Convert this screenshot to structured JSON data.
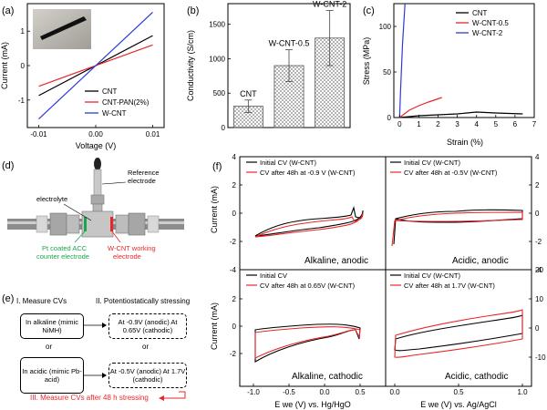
{
  "colors": {
    "black": "#000000",
    "red": "#e8262a",
    "blue": "#2b3bd6",
    "green": "#18a64a",
    "gray": "#a0a0a0"
  },
  "panel_a": {
    "letter": "(a)",
    "xlabel": "Voltage (V)",
    "ylabel": "Current (mA)",
    "xticks": [
      "-0.01",
      "0.00",
      "0.01"
    ],
    "yticks": [
      "-1",
      "0",
      "1"
    ],
    "legend": [
      "CNT",
      "CNT-PAN(2%)",
      "W-CNT"
    ]
  },
  "panel_b": {
    "letter": "(b)",
    "ylabel": "Conductivity (S/cm)",
    "yticks": [
      "0",
      "500",
      "1000",
      "1500"
    ],
    "bar_labels": [
      "CNT",
      "W-CNT-0.5",
      "W-CNT-2"
    ]
  },
  "panel_c": {
    "letter": "(c)",
    "xlabel": "Strain (%)",
    "ylabel": "Stress (MPa)",
    "xticks": [
      "0",
      "1",
      "2",
      "3",
      "4",
      "5",
      "6",
      "7"
    ],
    "yticks": [
      "0",
      "50",
      "100"
    ],
    "legend": [
      "CNT",
      "W-CNT-0.5",
      "W-CNT-2"
    ]
  },
  "panel_d": {
    "letter": "(d)",
    "reference": "Reference electrode",
    "electrolyte": "electrolyte",
    "counter": "Pt coated ACC counter electrode",
    "working": "W-CNT working electrode"
  },
  "panel_e": {
    "letter": "(e)",
    "step1": "I. Measure CVs",
    "step2": "II. Potentiostatically stressing",
    "alk": "In alkaline (mimic NiMH)",
    "acid": "In acidic (mimic Pb-acid)",
    "alk_stress": "At -0.9V (anodic) At 0.65V (cathodic)",
    "acid_stress": "At -0.5V (anodic) At 1.7V (cathodic)",
    "or": "or",
    "step3": "III. Measure CVs after 48 h stressing"
  },
  "panel_f": {
    "letter": "(f)",
    "ylabel": "Current (mA)",
    "xlabel_left": "E we (V) vs. Hg/HgO",
    "xlabel_right": "E we (V) vs. Ag/AgCl",
    "xticks_left": [
      "-1.0",
      "-0.5",
      "0.0",
      "0.5"
    ],
    "xticks_right": [
      "0.0",
      "0.5",
      "1.0"
    ],
    "yticks_top": [
      "4",
      "2",
      "0",
      "-2",
      "-4"
    ],
    "yticks_bottom_left": [
      "2",
      "0",
      "-2"
    ],
    "yticks_bottom_right": [
      "20",
      "10",
      "0",
      "-10"
    ],
    "sub": [
      {
        "title": "Alkaline, anodic",
        "legend": [
          "Initial CV (W-CNT)",
          "CV after 48h at -0.9 V (W-CNT)"
        ]
      },
      {
        "title": "Acidic, anodic",
        "legend": [
          "Initial CV (W-CNT)",
          "CV after 48h at -0.5V (W-CNT)"
        ]
      },
      {
        "title": "Alkaline, cathodic",
        "legend": [
          "Initial CV",
          "CV after 48h at 0.65V (W-CNT)"
        ]
      },
      {
        "title": "Acidic, cathodic",
        "legend": [
          "Initial CV (W-CNT)",
          "CV after 48h at 1.7V (W-CNT)"
        ]
      }
    ]
  },
  "chart_data": [
    {
      "type": "line",
      "title": "",
      "xlabel": "Voltage (V)",
      "ylabel": "Current (mA)",
      "xlim": [
        -0.012,
        0.012
      ],
      "ylim": [
        -1.8,
        1.8
      ],
      "series": [
        {
          "name": "CNT",
          "x": [
            -0.01,
            0.01
          ],
          "y": [
            -0.87,
            0.87
          ]
        },
        {
          "name": "CNT-PAN(2%)",
          "x": [
            -0.01,
            0.01
          ],
          "y": [
            -0.6,
            0.6
          ]
        },
        {
          "name": "W-CNT",
          "x": [
            -0.01,
            0.01
          ],
          "y": [
            -1.55,
            1.55
          ]
        }
      ]
    },
    {
      "type": "bar",
      "title": "",
      "ylabel": "Conductivity (S/cm)",
      "ylim": [
        0,
        1800
      ],
      "categories": [
        "CNT",
        "W-CNT-0.5",
        "W-CNT-2"
      ],
      "values": [
        310,
        900,
        1300
      ],
      "errors": [
        90,
        230,
        400
      ]
    },
    {
      "type": "line",
      "title": "",
      "xlabel": "Strain (%)",
      "ylabel": "Stress (MPa)",
      "xlim": [
        -0.3,
        7
      ],
      "ylim": [
        0,
        125
      ],
      "series": [
        {
          "name": "CNT",
          "x": [
            0,
            1,
            2,
            3,
            4,
            5,
            6.4
          ],
          "y": [
            0,
            2,
            3,
            4,
            6,
            5,
            4
          ]
        },
        {
          "name": "W-CNT-0.5",
          "x": [
            0,
            0.5,
            1,
            1.5,
            2.2
          ],
          "y": [
            0,
            8,
            13,
            17,
            22
          ]
        },
        {
          "name": "W-CNT-2",
          "x": [
            0,
            0.05,
            0.15,
            0.28
          ],
          "y": [
            0,
            30,
            80,
            125
          ]
        }
      ]
    }
  ]
}
